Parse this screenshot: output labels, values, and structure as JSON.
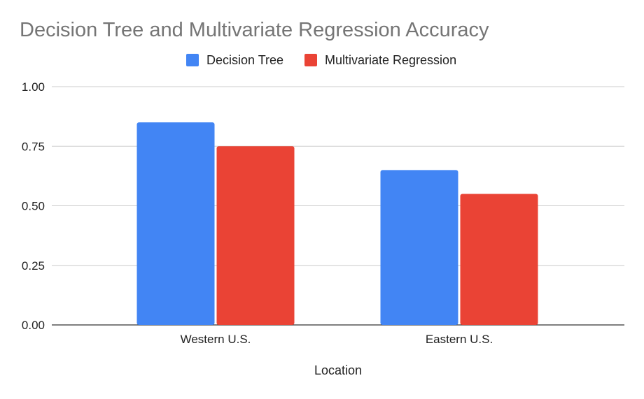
{
  "chart_data": {
    "type": "bar",
    "title": "Decision Tree and Multivariate Regression Accuracy",
    "xlabel": "Location",
    "ylabel": "",
    "categories": [
      "Western U.S.",
      "Eastern U.S."
    ],
    "series": [
      {
        "name": "Decision Tree",
        "color": "#4285f4",
        "values": [
          0.85,
          0.65
        ]
      },
      {
        "name": "Multivariate Regression",
        "color": "#ea4335",
        "values": [
          0.75,
          0.55
        ]
      }
    ],
    "ylim": [
      0,
      1
    ],
    "yticks": [
      0,
      0.25,
      0.5,
      0.75,
      1
    ],
    "ytick_labels": [
      "0.00",
      "0.25",
      "0.50",
      "0.75",
      "1.00"
    ],
    "grid": true,
    "legend_position": "top-center"
  }
}
